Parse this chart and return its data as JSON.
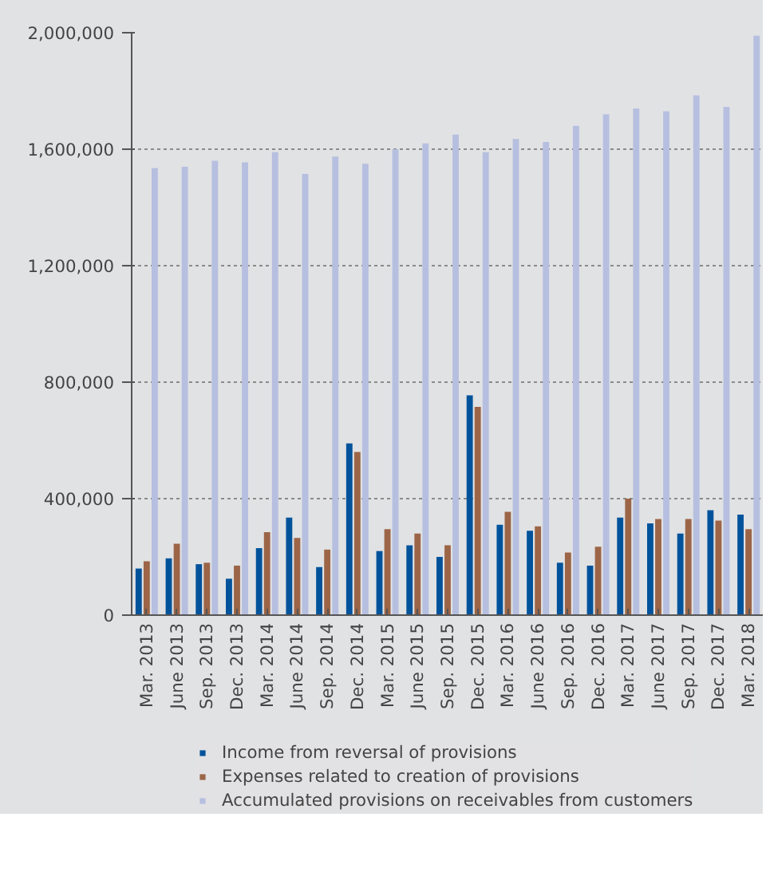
{
  "chart_data": {
    "type": "bar",
    "categories": [
      "Mar. 2013",
      "June 2013",
      "Sep. 2013",
      "Dec. 2013",
      "Mar. 2014",
      "June 2014",
      "Sep. 2014",
      "Dec. 2014",
      "Mar. 2015",
      "June 2015",
      "Sep. 2015",
      "Dec. 2015",
      "Mar. 2016",
      "June 2016",
      "Sep. 2016",
      "Dec. 2016",
      "Mar. 2017",
      "June 2017",
      "Sep. 2017",
      "Dec. 2017",
      "Mar. 2018"
    ],
    "series": [
      {
        "name": "Income from reversal of provisions",
        "color": "#00539b",
        "values": [
          160000,
          195000,
          175000,
          125000,
          230000,
          335000,
          165000,
          590000,
          220000,
          240000,
          200000,
          755000,
          310000,
          290000,
          180000,
          170000,
          335000,
          315000,
          280000,
          360000,
          345000
        ]
      },
      {
        "name": "Expenses related to creation of provisions",
        "color": "#9c6547",
        "values": [
          185000,
          245000,
          180000,
          170000,
          285000,
          265000,
          225000,
          560000,
          295000,
          280000,
          240000,
          715000,
          355000,
          305000,
          215000,
          235000,
          400000,
          330000,
          330000,
          325000,
          295000
        ]
      },
      {
        "name": "Accumulated provisions on receivables from customers",
        "color": "#b6bfdf",
        "values": [
          1535000,
          1540000,
          1560000,
          1555000,
          1590000,
          1515000,
          1575000,
          1550000,
          1600000,
          1620000,
          1650000,
          1590000,
          1635000,
          1625000,
          1680000,
          1720000,
          1740000,
          1730000,
          1785000,
          1745000,
          1990000
        ]
      }
    ],
    "ylim": [
      0,
      2000000
    ],
    "yticks": [
      {
        "value": 0,
        "label": "0"
      },
      {
        "value": 400000,
        "label": "400,000"
      },
      {
        "value": 800000,
        "label": "800,000"
      },
      {
        "value": 1200000,
        "label": "1,200,000"
      },
      {
        "value": 1600000,
        "label": "1,600,000"
      },
      {
        "value": 2000000,
        "label": "2,000,000"
      }
    ],
    "grid": "y",
    "legend": "bottom"
  }
}
